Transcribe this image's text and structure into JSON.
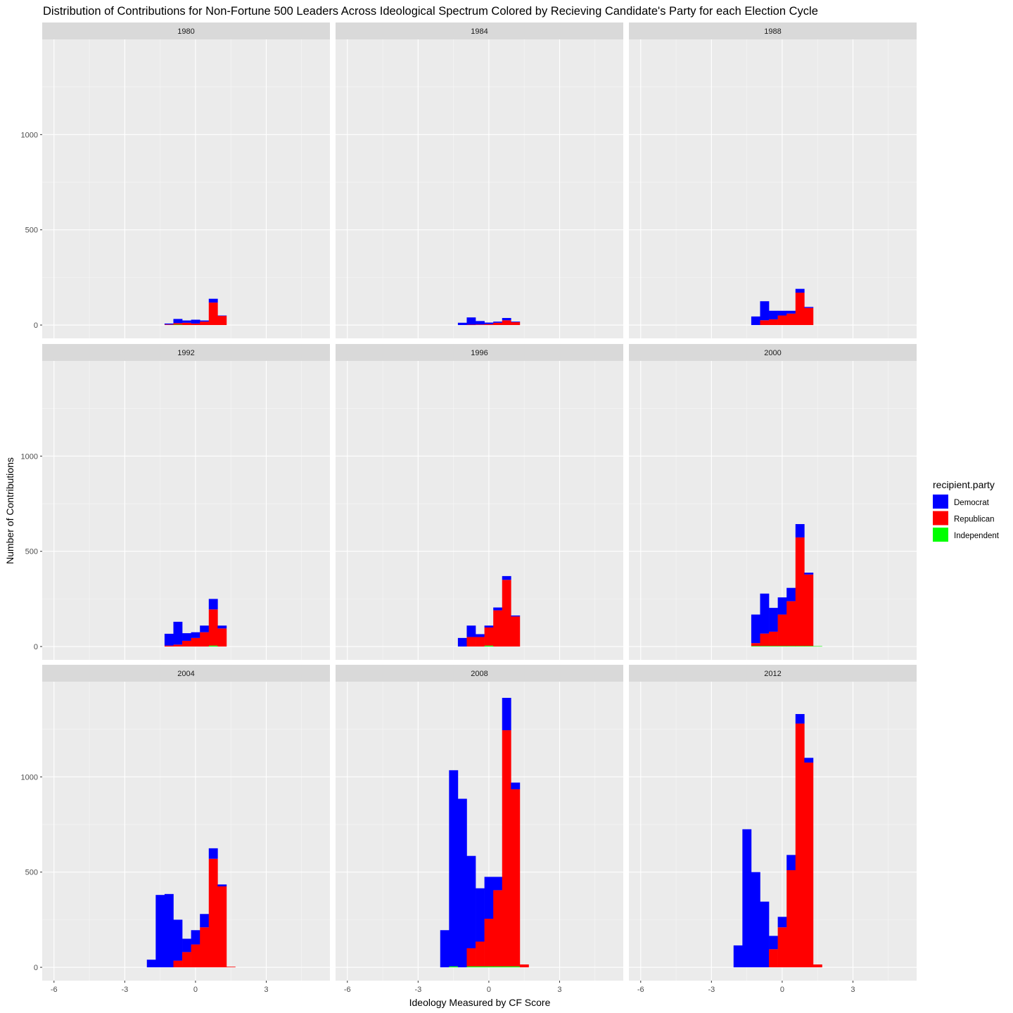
{
  "chart_data": {
    "type": "bar",
    "title": "Distribution of Contributions for Non-Fortune 500 Leaders Across Ideological Spectrum Colored by Recieving Candidate's Party for each Election Cycle",
    "xlabel": "Ideology Measured by CF Score",
    "ylabel": "Number of Contributions",
    "xlim": [
      -6.5,
      5.7
    ],
    "ylim": [
      -70,
      1500
    ],
    "x_ticks": [
      -6,
      -3,
      0,
      3
    ],
    "y_ticks": [
      0,
      500,
      1000
    ],
    "bin_width": 0.375,
    "grid": true,
    "stacking": "stacked",
    "legend": {
      "title": "recipient.party",
      "position": "right",
      "entries": [
        {
          "name": "Democrat",
          "color": "#0000ff"
        },
        {
          "name": "Republican",
          "color": "#ff0000"
        },
        {
          "name": "Independent",
          "color": "#00ff00"
        }
      ]
    },
    "x": [
      -1.875,
      -1.5,
      -1.125,
      -0.75,
      -0.375,
      0.0,
      0.375,
      0.75,
      1.125,
      1.5
    ],
    "panels": [
      {
        "label": "1980",
        "democrat": [
          0,
          0,
          5,
          22,
          12,
          20,
          6,
          20,
          2,
          0
        ],
        "republican": [
          0,
          0,
          3,
          8,
          12,
          8,
          18,
          118,
          48,
          0
        ],
        "independent": [
          0,
          0,
          0,
          2,
          0,
          0,
          0,
          0,
          0,
          0
        ]
      },
      {
        "label": "1984",
        "democrat": [
          0,
          0,
          12,
          38,
          18,
          8,
          6,
          12,
          3,
          0
        ],
        "republican": [
          0,
          0,
          0,
          2,
          3,
          5,
          12,
          25,
          15,
          0
        ],
        "independent": [
          0,
          0,
          0,
          0,
          0,
          0,
          0,
          0,
          0,
          0
        ]
      },
      {
        "label": "1988",
        "democrat": [
          0,
          0,
          45,
          100,
          45,
          25,
          15,
          20,
          5,
          0
        ],
        "republican": [
          0,
          0,
          0,
          25,
          30,
          50,
          60,
          170,
          90,
          0
        ],
        "independent": [
          0,
          0,
          0,
          0,
          0,
          0,
          0,
          0,
          0,
          0
        ]
      },
      {
        "label": "1992",
        "democrat": [
          0,
          0,
          62,
          120,
          40,
          30,
          35,
          55,
          15,
          0
        ],
        "republican": [
          0,
          0,
          5,
          10,
          30,
          45,
          75,
          190,
          95,
          0
        ],
        "independent": [
          0,
          0,
          0,
          0,
          0,
          0,
          0,
          5,
          0,
          0
        ]
      },
      {
        "label": "1996",
        "democrat": [
          0,
          0,
          45,
          60,
          15,
          10,
          15,
          20,
          5,
          0
        ],
        "republican": [
          0,
          0,
          0,
          50,
          50,
          95,
          190,
          350,
          158,
          0
        ],
        "independent": [
          0,
          0,
          0,
          0,
          0,
          5,
          0,
          0,
          0,
          0
        ]
      },
      {
        "label": "2000",
        "democrat": [
          0,
          0,
          150,
          210,
          125,
          90,
          70,
          70,
          10,
          0
        ],
        "republican": [
          0,
          0,
          15,
          65,
          75,
          165,
          235,
          570,
          375,
          0
        ],
        "independent": [
          0,
          0,
          3,
          3,
          3,
          3,
          3,
          3,
          3,
          2
        ]
      },
      {
        "label": "2004",
        "democrat": [
          40,
          380,
          385,
          215,
          70,
          75,
          70,
          55,
          10,
          0
        ],
        "republican": [
          0,
          0,
          0,
          35,
          80,
          120,
          210,
          570,
          425,
          3
        ],
        "independent": [
          0,
          0,
          0,
          0,
          0,
          0,
          0,
          0,
          0,
          0
        ]
      },
      {
        "label": "2008",
        "democrat": [
          195,
          1030,
          885,
          485,
          280,
          220,
          70,
          170,
          35,
          0
        ],
        "republican": [
          0,
          0,
          0,
          95,
          130,
          250,
          400,
          1240,
          930,
          15
        ],
        "independent": [
          0,
          5,
          0,
          5,
          5,
          5,
          5,
          5,
          5,
          0
        ]
      },
      {
        "label": "2012",
        "democrat": [
          115,
          725,
          500,
          345,
          70,
          55,
          80,
          50,
          25,
          0
        ],
        "republican": [
          0,
          0,
          0,
          0,
          95,
          210,
          510,
          1280,
          1075,
          15
        ],
        "independent": [
          0,
          0,
          0,
          0,
          0,
          0,
          0,
          0,
          0,
          0
        ]
      }
    ]
  }
}
